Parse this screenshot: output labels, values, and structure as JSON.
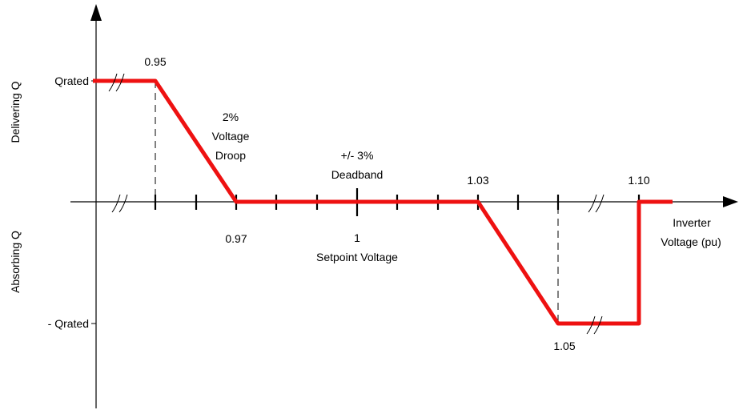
{
  "y_axis": {
    "top_label": "Delivering Q",
    "bottom_label": "Absorbing Q",
    "ticks": [
      "Qrated",
      "- Qrated"
    ]
  },
  "x_axis": {
    "label_line1": "Inverter",
    "label_line2": "Voltage (pu)"
  },
  "points": {
    "v095": "0.95",
    "v097": "0.97",
    "v1": "1",
    "v103": "1.03",
    "v105": "1.05",
    "v110": "1.10"
  },
  "annotations": {
    "droop_line1": "2%",
    "droop_line2": "Voltage",
    "droop_line3": "Droop",
    "deadband_line1": "+/- 3%",
    "deadband_line2": "Deadband",
    "setpoint": "Setpoint Voltage"
  },
  "colors": {
    "curve": "#ee1111",
    "axes": "#000000",
    "background": "#ffffff"
  }
}
